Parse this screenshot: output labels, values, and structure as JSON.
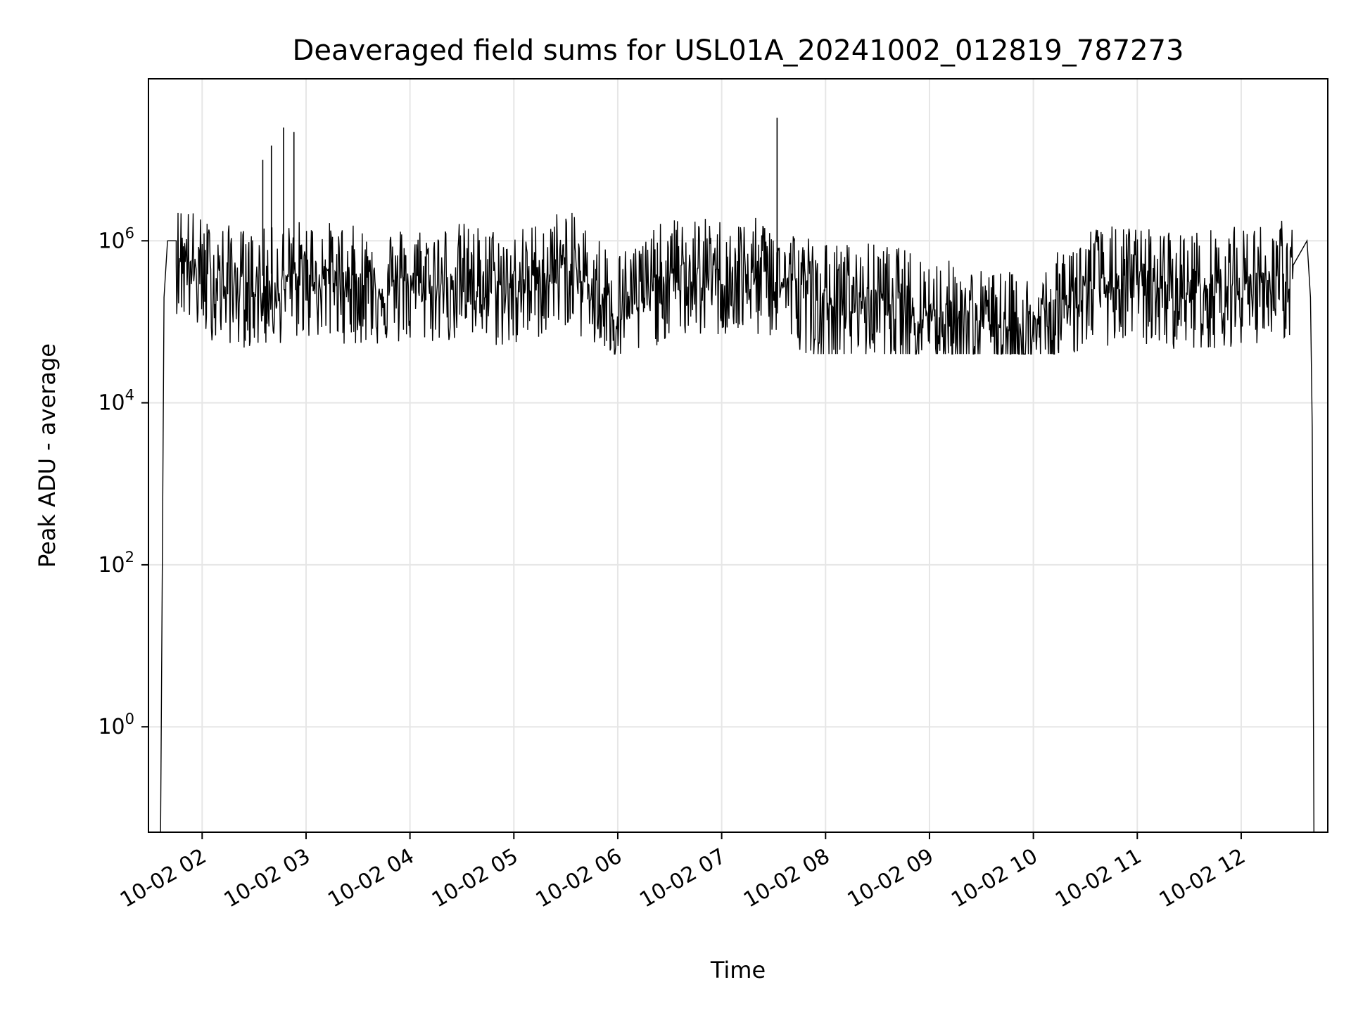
{
  "chart_data": {
    "type": "line",
    "title": "Deaveraged field sums for USL01A_20241002_012819_787273",
    "xlabel": "Time",
    "ylabel": "Peak ADU - average",
    "y_scale": "log",
    "ylim": [
      0.05,
      100000000
    ],
    "x_range": [
      "10-02 01:29",
      "10-02 12:50"
    ],
    "grid": true,
    "line_color": "#000000",
    "grid_color": "#e6e6e6",
    "x_ticks": [
      "10-02 02",
      "10-02 03",
      "10-02 04",
      "10-02 05",
      "10-02 06",
      "10-02 07",
      "10-02 08",
      "10-02 09",
      "10-02 10",
      "10-02 11",
      "10-02 12"
    ],
    "y_ticks": [
      {
        "base": "10",
        "exp": "0",
        "value": 1
      },
      {
        "base": "10",
        "exp": "2",
        "value": 100
      },
      {
        "base": "10",
        "exp": "4",
        "value": 10000
      },
      {
        "base": "10",
        "exp": "6",
        "value": 1000000
      }
    ],
    "series": [
      {
        "x": [
          "10-02 01:36",
          "10-02 01:37",
          "10-02 01:38",
          "10-02 01:40",
          "10-02 01:45",
          "10-02 02:00",
          "10-02 02:30",
          "10-02 03:00",
          "10-02 03:30",
          "10-02 04:00",
          "10-02 04:30",
          "10-02 05:00",
          "10-02 05:30",
          "10-02 06:00",
          "10-02 06:30",
          "10-02 07:00",
          "10-02 07:30",
          "10-02 08:00",
          "10-02 08:30",
          "10-02 09:00",
          "10-02 09:30",
          "10-02 10:00",
          "10-02 10:30",
          "10-02 11:00",
          "10-02 11:30",
          "10-02 12:00",
          "10-02 12:30",
          "10-02 12:38",
          "10-02 12:40",
          "10-02 12:41",
          "10-02 12:42"
        ],
        "y": [
          0.05,
          100,
          200000,
          1000000,
          1000000,
          500000,
          350000,
          500000,
          400000,
          400000,
          450000,
          350000,
          700000,
          200000,
          500000,
          500000,
          500000,
          250000,
          250000,
          180000,
          120000,
          100000,
          400000,
          400000,
          350000,
          400000,
          500000,
          1000000,
          200000,
          5000,
          0.05
        ]
      }
    ],
    "spikes": [
      {
        "x": "10-02 02:35",
        "y": 10000000
      },
      {
        "x": "10-02 02:40",
        "y": 15000000
      },
      {
        "x": "10-02 02:47",
        "y": 25000000
      },
      {
        "x": "10-02 02:53",
        "y": 22000000
      },
      {
        "x": "10-02 07:32",
        "y": 33000000
      }
    ]
  }
}
